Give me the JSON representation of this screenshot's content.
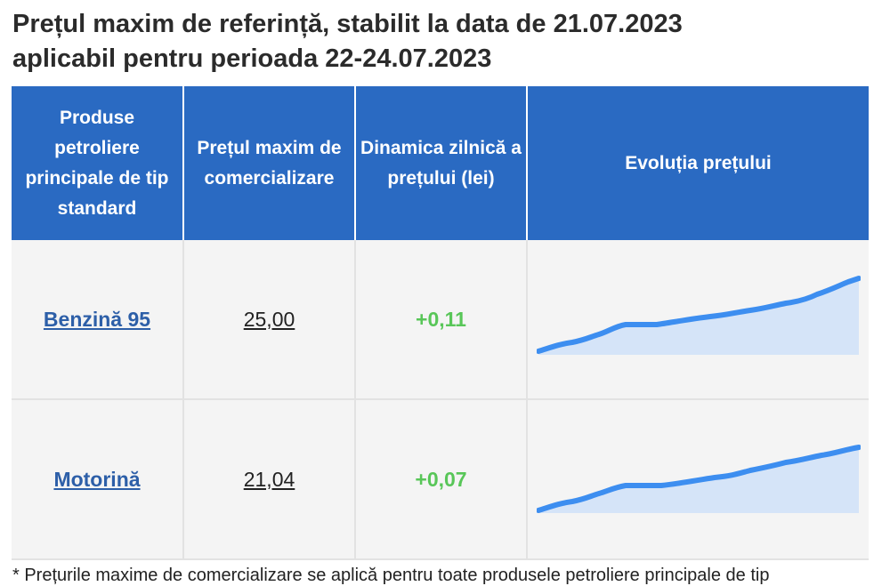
{
  "title_line1": "Prețul maxim de referință, stabilit la data de 21.07.2023",
  "title_line2": "aplicabil pentru perioada 22-24.07.2023",
  "table": {
    "headers": [
      "Produse petroliere principale de tip standard",
      "Prețul maxim de comercializare",
      "Dinamica zilnică a prețului (lei)",
      "Evoluția prețului"
    ],
    "rows": [
      {
        "product": "Benzină 95",
        "price": "25,00",
        "dynamics": "+0,11"
      },
      {
        "product": "Motorină",
        "price": "21,04",
        "dynamics": "+0,07"
      }
    ]
  },
  "colors": {
    "header_bg": "#2a6ac2",
    "link": "#2d5fa8",
    "positive": "#58c658",
    "spark_line": "#3d8ef0",
    "spark_fill": "#cfe1f8"
  },
  "footnote": "* Prețurile maxime de comercializare se aplică pentru toate produsele petroliere principale de tip"
}
